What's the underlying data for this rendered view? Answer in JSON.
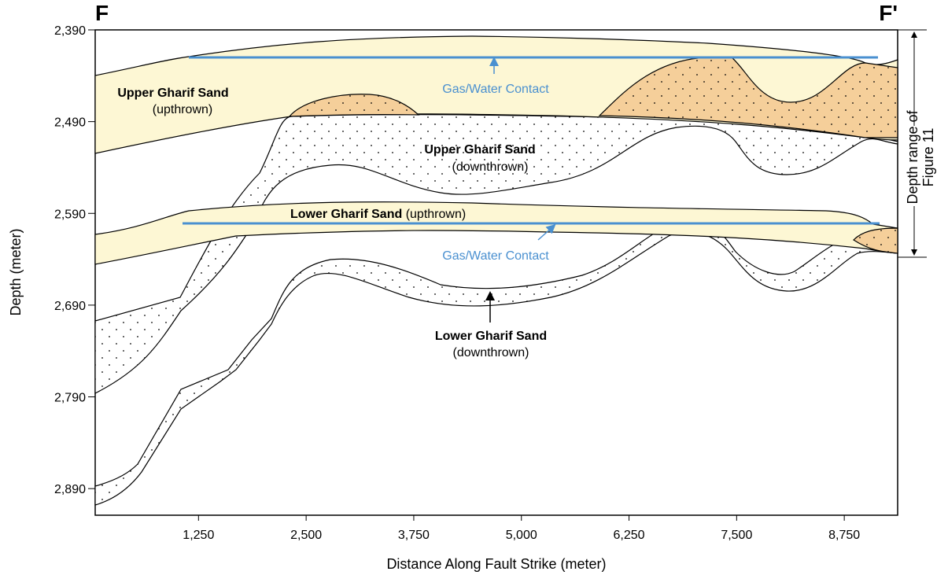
{
  "panel_labels": {
    "left": "F",
    "right": "F'"
  },
  "axes": {
    "x_label": "Distance Along Fault Strike (meter)",
    "y_label": "Depth (meter)",
    "xlim": [
      50,
      9370
    ],
    "ylim": [
      2390,
      2919
    ],
    "xticks": [
      {
        "value": 1250,
        "label": "1,250"
      },
      {
        "value": 2500,
        "label": "2,500"
      },
      {
        "value": 3750,
        "label": "3,750"
      },
      {
        "value": 5000,
        "label": "5,000"
      },
      {
        "value": 6250,
        "label": "6,250"
      },
      {
        "value": 7500,
        "label": "7,500"
      },
      {
        "value": 8750,
        "label": "8,750"
      }
    ],
    "yticks": [
      {
        "value": 2390,
        "label": "2,390"
      },
      {
        "value": 2490,
        "label": "2,490"
      },
      {
        "value": 2590,
        "label": "2,590"
      },
      {
        "value": 2690,
        "label": "2,690"
      },
      {
        "value": 2790,
        "label": "2,790"
      },
      {
        "value": 2890,
        "label": "2,890"
      }
    ]
  },
  "annotations": {
    "upper_up_name": "Upper Gharif Sand",
    "upper_up_note": "(upthrown)",
    "gwc_upper": "Gas/Water Contact",
    "upper_down_name": "Upper Gharif Sand",
    "upper_down_note": "(downthrown)",
    "lower_up_name": "Lower Gharif Sand",
    "lower_up_note": "(upthrown)",
    "gwc_lower": "Gas/Water Contact",
    "lower_down_name": "Lower Gharif Sand",
    "lower_down_note": "(downthrown)",
    "depth_range_1": "Depth range of",
    "depth_range_2": "Figure 11"
  }
}
